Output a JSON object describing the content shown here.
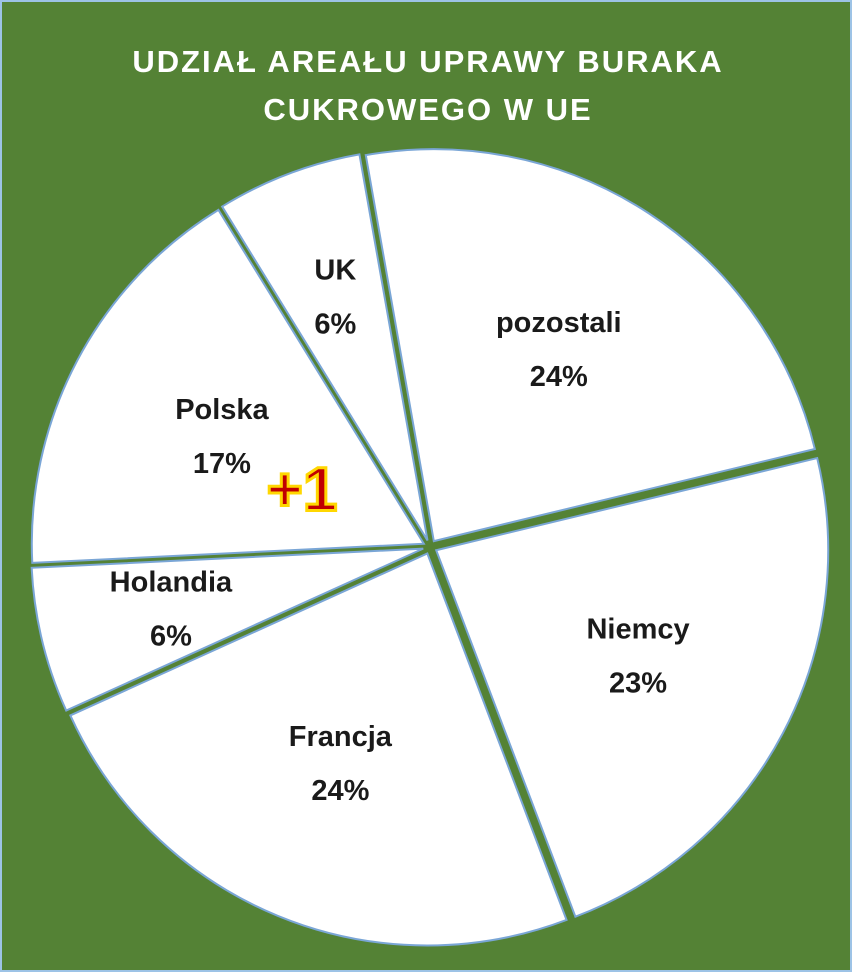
{
  "chart_data": {
    "type": "pie",
    "title": "UDZIAŁ AREAŁU UPRAWY BURAKA CUKROWEGO W UE",
    "categories": [
      "pozostali",
      "Niemcy",
      "Francja",
      "Holandia",
      "Polska",
      "UK"
    ],
    "values": [
      24,
      23,
      24,
      6,
      17,
      6
    ],
    "value_labels": [
      "24%",
      "23%",
      "24%",
      "6%",
      "17%",
      "6%"
    ],
    "color": "#ffffff",
    "annotation": "+1"
  }
}
